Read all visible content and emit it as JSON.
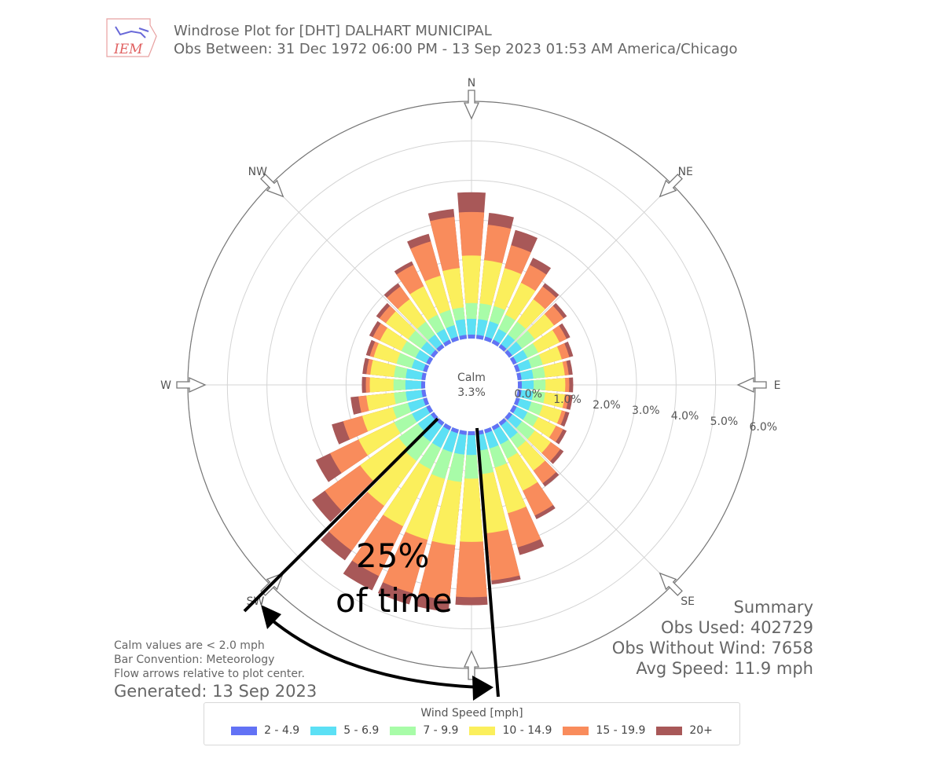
{
  "header": {
    "logo_text": "IEM",
    "title_line1": "Windrose Plot for [DHT] DALHART MUNICIPAL",
    "title_line2": "Obs Between: 31 Dec 1972 06:00 PM - 13 Sep 2023 01:53 AM America/Chicago"
  },
  "directions": {
    "N": "N",
    "NE": "NE",
    "E": "E",
    "SE": "SE",
    "SW": "SW",
    "W": "W",
    "NW": "NW"
  },
  "calm": {
    "label": "Calm",
    "value": "3.3%"
  },
  "notes": {
    "line1": "Calm values are < 2.0 mph",
    "line2": "Bar Convention: Meteorology",
    "line3": "Flow arrows relative to plot center.",
    "generated": "Generated: 13 Sep 2023"
  },
  "summary": {
    "title": "Summary",
    "obs_used": "Obs Used: 402729",
    "obs_without_wind": "Obs Without Wind: 7658",
    "avg_speed": "Avg Speed: 11.9 mph"
  },
  "annotation": {
    "line1": "25%",
    "line2": "of time"
  },
  "legend": {
    "title": "Wind Speed [mph]",
    "items": [
      {
        "label": "2 - 4.9",
        "color": "#6272f5"
      },
      {
        "label": "5 - 6.9",
        "color": "#5ce0f5"
      },
      {
        "label": "7 - 9.9",
        "color": "#a8fca8"
      },
      {
        "label": "10 - 14.9",
        "color": "#fbef5c"
      },
      {
        "label": "15 - 19.9",
        "color": "#f98c5c"
      },
      {
        "label": "20+",
        "color": "#a85858"
      }
    ]
  },
  "chart_data": {
    "type": "windrose",
    "radial_ticks": [
      "0.0%",
      "1.0%",
      "2.0%",
      "3.0%",
      "4.0%",
      "5.0%",
      "6.0%"
    ],
    "radial_max": 6.0,
    "bins": [
      "2 - 4.9",
      "5 - 6.9",
      "7 - 9.9",
      "10 - 14.9",
      "15 - 19.9",
      "20+"
    ],
    "directions_deg": [
      0,
      10,
      20,
      30,
      40,
      50,
      60,
      70,
      80,
      90,
      100,
      110,
      120,
      130,
      140,
      150,
      160,
      170,
      180,
      190,
      200,
      210,
      220,
      230,
      240,
      250,
      260,
      270,
      280,
      290,
      300,
      310,
      320,
      330,
      340,
      350
    ],
    "cumulative": [
      [
        0.1,
        0.5,
        0.9,
        2.1,
        3.2,
        3.7
      ],
      [
        0.1,
        0.5,
        0.9,
        2.0,
        2.9,
        3.2
      ],
      [
        0.1,
        0.5,
        0.9,
        1.9,
        2.5,
        2.9
      ],
      [
        0.1,
        0.4,
        0.8,
        1.7,
        2.2,
        2.4
      ],
      [
        0.1,
        0.4,
        0.8,
        1.5,
        1.9,
        2.0
      ],
      [
        0.1,
        0.4,
        0.8,
        1.4,
        1.7,
        1.8
      ],
      [
        0.1,
        0.4,
        0.7,
        1.3,
        1.5,
        1.6
      ],
      [
        0.1,
        0.4,
        0.7,
        1.2,
        1.4,
        1.5
      ],
      [
        0.1,
        0.4,
        0.7,
        1.2,
        1.3,
        1.4
      ],
      [
        0.1,
        0.4,
        0.7,
        1.2,
        1.3,
        1.4
      ],
      [
        0.1,
        0.4,
        0.7,
        1.2,
        1.3,
        1.4
      ],
      [
        0.1,
        0.4,
        0.7,
        1.2,
        1.3,
        1.4
      ],
      [
        0.1,
        0.4,
        0.7,
        1.2,
        1.4,
        1.5
      ],
      [
        0.1,
        0.4,
        0.8,
        1.3,
        1.6,
        1.7
      ],
      [
        0.1,
        0.5,
        0.8,
        1.5,
        1.9,
        2.0
      ],
      [
        0.1,
        0.5,
        0.9,
        1.8,
        2.5,
        2.6
      ],
      [
        0.1,
        0.5,
        1.0,
        2.2,
        3.1,
        3.3
      ],
      [
        0.1,
        0.5,
        1.1,
        2.6,
        3.8,
        3.9
      ],
      [
        0.1,
        0.6,
        1.2,
        2.8,
        4.2,
        4.4
      ],
      [
        0.1,
        0.6,
        1.3,
        2.9,
        4.3,
        4.6
      ],
      [
        0.1,
        0.6,
        1.3,
        2.9,
        4.3,
        4.6
      ],
      [
        0.1,
        0.6,
        1.2,
        2.8,
        4.2,
        4.6
      ],
      [
        0.1,
        0.6,
        1.2,
        2.6,
        4.0,
        4.3
      ],
      [
        0.1,
        0.5,
        1.1,
        2.3,
        3.4,
        3.8
      ],
      [
        0.1,
        0.5,
        1.0,
        2.0,
        2.8,
        3.2
      ],
      [
        0.1,
        0.5,
        0.9,
        1.7,
        2.2,
        2.5
      ],
      [
        0.1,
        0.5,
        0.8,
        1.5,
        1.7,
        1.9
      ],
      [
        0.1,
        0.5,
        0.8,
        1.4,
        1.5,
        1.6
      ],
      [
        0.1,
        0.5,
        0.8,
        1.4,
        1.5,
        1.6
      ],
      [
        0.1,
        0.4,
        0.8,
        1.4,
        1.5,
        1.6
      ],
      [
        0.1,
        0.4,
        0.8,
        1.4,
        1.6,
        1.7
      ],
      [
        0.1,
        0.4,
        0.8,
        1.5,
        1.7,
        1.8
      ],
      [
        0.1,
        0.4,
        0.8,
        1.5,
        1.9,
        2.0
      ],
      [
        0.1,
        0.4,
        0.8,
        1.6,
        2.2,
        2.3
      ],
      [
        0.1,
        0.4,
        0.8,
        1.7,
        2.6,
        2.8
      ],
      [
        0.1,
        0.5,
        0.8,
        1.8,
        3.1,
        3.3
      ]
    ]
  }
}
